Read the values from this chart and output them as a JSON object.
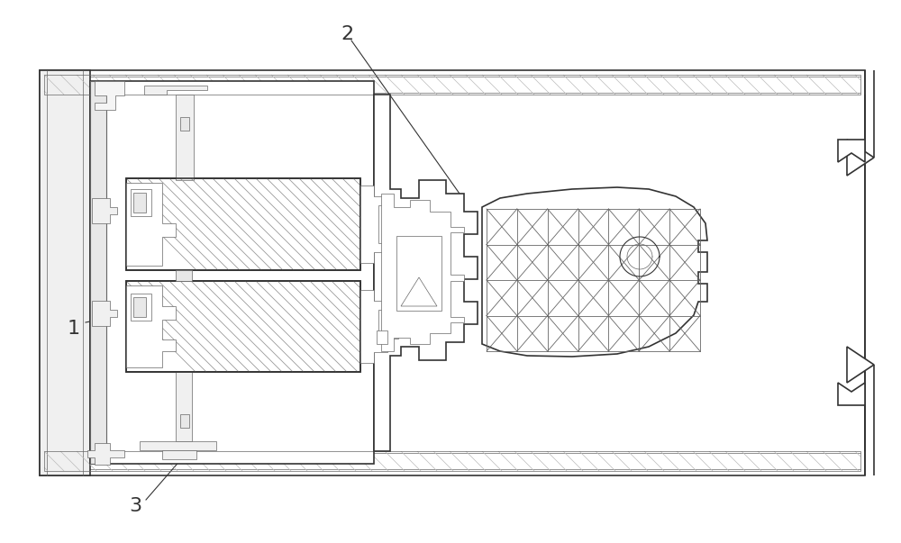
{
  "bg_color": "#ffffff",
  "line_color": "#666666",
  "dark_line": "#333333",
  "label_fontsize": 14,
  "fig_width": 10.0,
  "fig_height": 6.03
}
